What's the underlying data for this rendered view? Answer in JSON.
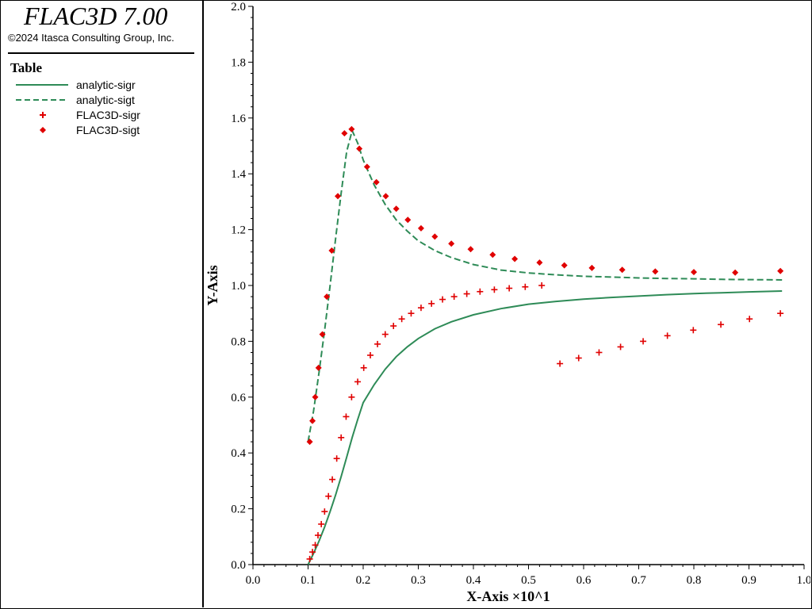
{
  "app": {
    "title": "FLAC3D 7.00",
    "copyright": "©2024 Itasca Consulting Group, Inc."
  },
  "legend": {
    "title": "Table",
    "items": [
      {
        "label": "analytic-sigr",
        "style": "solid-line",
        "color": "#2e8b57"
      },
      {
        "label": "analytic-sigt",
        "style": "dashed-line",
        "color": "#2e8b57"
      },
      {
        "label": "FLAC3D-sigr",
        "style": "plus-marker",
        "color": "#e00000"
      },
      {
        "label": "FLAC3D-sigt",
        "style": "diamond-marker",
        "color": "#e00000"
      }
    ]
  },
  "chart_data": {
    "type": "line",
    "xlabel": "X-Axis ×10^1",
    "ylabel": "Y-Axis",
    "xlim": [
      0.0,
      1.0
    ],
    "ylim": [
      0.0,
      2.0
    ],
    "xticks": [
      "0.0",
      "0.1",
      "0.2",
      "0.3",
      "0.4",
      "0.5",
      "0.6",
      "0.7",
      "0.8",
      "0.9",
      "1.0"
    ],
    "yticks": [
      "0.0",
      "0.2",
      "0.4",
      "0.6",
      "0.8",
      "1.0",
      "1.2",
      "1.4",
      "1.6",
      "1.8",
      "2.0"
    ],
    "grid": false,
    "series": [
      {
        "name": "analytic-sigr",
        "kind": "line",
        "dash": false,
        "color": "#2e8b57",
        "x": [
          0.1,
          0.11,
          0.12,
          0.13,
          0.14,
          0.15,
          0.16,
          0.17,
          0.18,
          0.19,
          0.2,
          0.22,
          0.24,
          0.26,
          0.28,
          0.3,
          0.33,
          0.36,
          0.4,
          0.45,
          0.5,
          0.55,
          0.6,
          0.65,
          0.7,
          0.75,
          0.8,
          0.85,
          0.9,
          0.96
        ],
        "y": [
          0.0,
          0.04,
          0.085,
          0.135,
          0.19,
          0.25,
          0.315,
          0.385,
          0.455,
          0.52,
          0.58,
          0.645,
          0.7,
          0.745,
          0.78,
          0.81,
          0.845,
          0.87,
          0.895,
          0.917,
          0.933,
          0.943,
          0.951,
          0.957,
          0.962,
          0.967,
          0.971,
          0.974,
          0.977,
          0.98
        ]
      },
      {
        "name": "analytic-sigt",
        "kind": "line",
        "dash": true,
        "color": "#2e8b57",
        "x": [
          0.1,
          0.11,
          0.12,
          0.13,
          0.14,
          0.15,
          0.16,
          0.17,
          0.18,
          0.19,
          0.2,
          0.21,
          0.22,
          0.24,
          0.26,
          0.28,
          0.3,
          0.33,
          0.36,
          0.4,
          0.45,
          0.5,
          0.55,
          0.6,
          0.65,
          0.7,
          0.75,
          0.8,
          0.85,
          0.9,
          0.96
        ],
        "y": [
          0.44,
          0.55,
          0.69,
          0.84,
          1.0,
          1.17,
          1.33,
          1.48,
          1.555,
          1.51,
          1.45,
          1.405,
          1.36,
          1.29,
          1.235,
          1.195,
          1.16,
          1.125,
          1.1,
          1.075,
          1.055,
          1.045,
          1.038,
          1.033,
          1.03,
          1.027,
          1.025,
          1.024,
          1.022,
          1.021,
          1.02
        ]
      },
      {
        "name": "FLAC3D-sigr",
        "kind": "scatter",
        "marker": "plus",
        "color": "#e00000",
        "x": [
          0.103,
          0.108,
          0.113,
          0.118,
          0.124,
          0.13,
          0.137,
          0.144,
          0.152,
          0.16,
          0.169,
          0.179,
          0.19,
          0.201,
          0.213,
          0.226,
          0.24,
          0.255,
          0.27,
          0.287,
          0.305,
          0.324,
          0.344,
          0.365,
          0.388,
          0.412,
          0.438,
          0.465,
          0.494,
          0.524,
          0.557,
          0.591,
          0.628,
          0.667,
          0.708,
          0.752,
          0.799,
          0.849,
          0.901,
          0.957
        ],
        "y": [
          0.02,
          0.045,
          0.07,
          0.105,
          0.145,
          0.19,
          0.245,
          0.305,
          0.38,
          0.455,
          0.53,
          0.6,
          0.655,
          0.705,
          0.75,
          0.79,
          0.825,
          0.855,
          0.88,
          0.9,
          0.92,
          0.935,
          0.95,
          0.96,
          0.97,
          0.978,
          0.985,
          0.99,
          0.995,
          1.0,
          0.72,
          0.74,
          0.76,
          0.78,
          0.8,
          0.82,
          0.84,
          0.86,
          0.88,
          0.9
        ]
      },
      {
        "name": "FLAC3D-sigt",
        "kind": "scatter",
        "marker": "diamond",
        "color": "#e00000",
        "x": [
          0.103,
          0.108,
          0.113,
          0.119,
          0.126,
          0.134,
          0.143,
          0.154,
          0.166,
          0.179,
          0.193,
          0.207,
          0.224,
          0.241,
          0.26,
          0.281,
          0.305,
          0.33,
          0.36,
          0.395,
          0.435,
          0.475,
          0.52,
          0.565,
          0.615,
          0.67,
          0.73,
          0.8,
          0.875,
          0.957
        ],
        "y": [
          0.44,
          0.515,
          0.6,
          0.705,
          0.825,
          0.96,
          1.125,
          1.32,
          1.545,
          1.56,
          1.49,
          1.425,
          1.37,
          1.32,
          1.275,
          1.235,
          1.205,
          1.175,
          1.15,
          1.13,
          1.11,
          1.095,
          1.082,
          1.072,
          1.063,
          1.056,
          1.05,
          1.048,
          1.046,
          1.052
        ]
      }
    ]
  }
}
